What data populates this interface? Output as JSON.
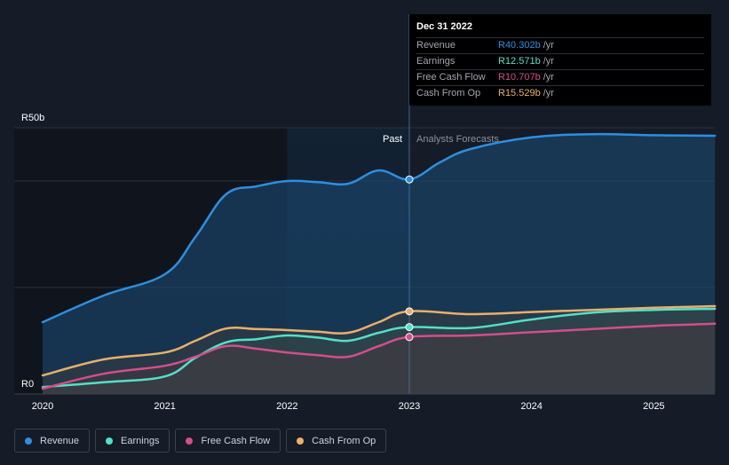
{
  "chart_data": {
    "type": "area",
    "title": "",
    "y_axis": {
      "min": 0,
      "max": 50,
      "ticks": [
        {
          "value": 50,
          "label": "R50b"
        },
        {
          "value": 0,
          "label": "R0"
        }
      ]
    },
    "x_axis": {
      "min": 2020.0,
      "max": 2025.5,
      "ticks": [
        {
          "value": 2020,
          "label": "2020"
        },
        {
          "value": 2021,
          "label": "2021"
        },
        {
          "value": 2022,
          "label": "2022"
        },
        {
          "value": 2023,
          "label": "2023"
        },
        {
          "value": 2024,
          "label": "2024"
        },
        {
          "value": 2025,
          "label": "2025"
        }
      ]
    },
    "divider_x": 2023.0,
    "highlight_start_x": 2022.0,
    "past_label": "Past",
    "forecast_label": "Analysts Forecasts",
    "series": [
      {
        "name": "Revenue",
        "color": "#2d8fe0",
        "points": [
          [
            2020.0,
            13.5
          ],
          [
            2020.5,
            18.5
          ],
          [
            2021.0,
            22.5
          ],
          [
            2021.25,
            29.5
          ],
          [
            2021.5,
            37.5
          ],
          [
            2021.75,
            39.0
          ],
          [
            2022.0,
            40.0
          ],
          [
            2022.25,
            39.8
          ],
          [
            2022.5,
            39.5
          ],
          [
            2022.75,
            42.0
          ],
          [
            2023.0,
            40.3
          ],
          [
            2023.25,
            43.5
          ],
          [
            2023.5,
            46.0
          ],
          [
            2024.0,
            48.2
          ],
          [
            2024.5,
            48.8
          ],
          [
            2025.0,
            48.6
          ],
          [
            2025.5,
            48.5
          ]
        ]
      },
      {
        "name": "Earnings",
        "color": "#53e0c8",
        "points": [
          [
            2020.0,
            1.3
          ],
          [
            2020.5,
            2.2
          ],
          [
            2021.0,
            3.3
          ],
          [
            2021.25,
            6.8
          ],
          [
            2021.5,
            9.7
          ],
          [
            2021.75,
            10.3
          ],
          [
            2022.0,
            11.0
          ],
          [
            2022.25,
            10.6
          ],
          [
            2022.5,
            10.0
          ],
          [
            2022.75,
            11.5
          ],
          [
            2023.0,
            12.571
          ],
          [
            2023.5,
            12.4
          ],
          [
            2024.0,
            14.0
          ],
          [
            2024.5,
            15.3
          ],
          [
            2025.0,
            15.8
          ],
          [
            2025.5,
            16.0
          ]
        ]
      },
      {
        "name": "Free Cash Flow",
        "color": "#d24f8a",
        "points": [
          [
            2020.0,
            1.0
          ],
          [
            2020.5,
            3.8
          ],
          [
            2021.0,
            5.3
          ],
          [
            2021.25,
            7.0
          ],
          [
            2021.5,
            9.0
          ],
          [
            2021.75,
            8.5
          ],
          [
            2022.0,
            7.8
          ],
          [
            2022.25,
            7.3
          ],
          [
            2022.5,
            7.0
          ],
          [
            2022.75,
            9.0
          ],
          [
            2023.0,
            10.707
          ],
          [
            2023.5,
            11.0
          ],
          [
            2024.0,
            11.6
          ],
          [
            2024.5,
            12.2
          ],
          [
            2025.0,
            12.8
          ],
          [
            2025.5,
            13.2
          ]
        ]
      },
      {
        "name": "Cash From Op",
        "color": "#e8b06a",
        "points": [
          [
            2020.0,
            3.5
          ],
          [
            2020.5,
            6.5
          ],
          [
            2021.0,
            7.8
          ],
          [
            2021.25,
            10.0
          ],
          [
            2021.5,
            12.3
          ],
          [
            2021.75,
            12.2
          ],
          [
            2022.0,
            12.0
          ],
          [
            2022.25,
            11.7
          ],
          [
            2022.5,
            11.5
          ],
          [
            2022.75,
            13.5
          ],
          [
            2023.0,
            15.529
          ],
          [
            2023.5,
            15.0
          ],
          [
            2024.0,
            15.4
          ],
          [
            2024.5,
            15.8
          ],
          [
            2025.0,
            16.2
          ],
          [
            2025.5,
            16.5
          ]
        ]
      }
    ]
  },
  "tooltip": {
    "date": "Dec 31 2022",
    "unit": "/yr",
    "rows": [
      {
        "label": "Revenue",
        "value": "R40.302b",
        "color": "#2d8fe0"
      },
      {
        "label": "Earnings",
        "value": "R12.571b",
        "color": "#53e0c8"
      },
      {
        "label": "Free Cash Flow",
        "value": "R10.707b",
        "color": "#d24f8a"
      },
      {
        "label": "Cash From Op",
        "value": "R15.529b",
        "color": "#e8b06a"
      }
    ]
  },
  "legend": [
    {
      "label": "Revenue",
      "color": "#2d8fe0"
    },
    {
      "label": "Earnings",
      "color": "#53e0c8"
    },
    {
      "label": "Free Cash Flow",
      "color": "#d24f8a"
    },
    {
      "label": "Cash From Op",
      "color": "#e8b06a"
    }
  ]
}
